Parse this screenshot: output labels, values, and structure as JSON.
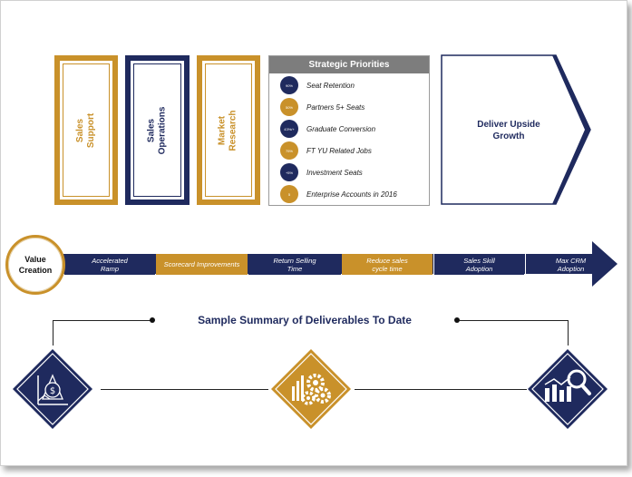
{
  "colors": {
    "navy": "#1f2a5e",
    "gold": "#c9912a",
    "grey": "#7d7d7d"
  },
  "boxes": [
    {
      "line1": "Sales",
      "line2": "Support",
      "color": "#c9912a"
    },
    {
      "line1": "Sales",
      "line2": "Operations",
      "color": "#1f2a5e"
    },
    {
      "line1": "Market",
      "line2": "Research",
      "color": "#c9912a"
    }
  ],
  "priorities": {
    "title": "Strategic Priorities",
    "items": [
      {
        "badge": "90%",
        "label": "Seat Retention",
        "color": "#1f2a5e"
      },
      {
        "badge": "50%",
        "label": "Partners 5+ Seats",
        "color": "#c9912a"
      },
      {
        "badge": "43%/+",
        "label": "Graduate Conversion",
        "color": "#1f2a5e"
      },
      {
        "badge": "75%",
        "label": "FT YU Related Jobs",
        "color": "#c9912a"
      },
      {
        "badge": "+5%",
        "label": "Investment Seats",
        "color": "#1f2a5e"
      },
      {
        "badge": "5",
        "label": "Enterprise Accounts in 2016",
        "color": "#c9912a"
      }
    ]
  },
  "deliver": {
    "line1": "Deliver Upside",
    "line2": "Growth"
  },
  "value_creation": {
    "line1": "Value",
    "line2": "Creation"
  },
  "timeline": [
    {
      "line1": "Accelerated",
      "line2": "Ramp",
      "color": "#1f2a5e"
    },
    {
      "line1": "Scorecard Improvements",
      "line2": "",
      "color": "#c9912a"
    },
    {
      "line1": "Return Selling",
      "line2": "Time",
      "color": "#1f2a5e"
    },
    {
      "line1": "Reduce sales",
      "line2": "cycle time",
      "color": "#c9912a"
    },
    {
      "line1": "Sales Skill",
      "line2": "Adoption",
      "color": "#1f2a5e"
    },
    {
      "line1": "Max CRM",
      "line2": "Adoption",
      "color": "#1f2a5e"
    }
  ],
  "summary": {
    "title": "Sample Summary of Deliverables To Date"
  },
  "icons": [
    "dollar-growth-chart-icon",
    "gears-chart-icon",
    "chart-magnifier-icon"
  ]
}
